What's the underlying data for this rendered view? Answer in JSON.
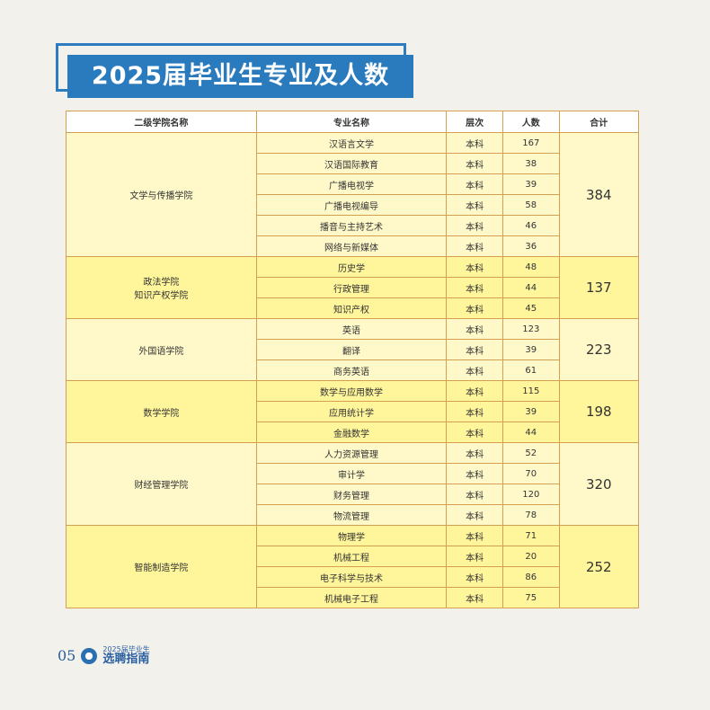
{
  "title": "2025届毕业生专业及人数",
  "table": {
    "headers": [
      "二级学院名称",
      "专业名称",
      "层次",
      "人数",
      "合计"
    ],
    "groups": [
      {
        "college": "文学与传播学院",
        "total": "384",
        "rows": [
          [
            "汉语言文学",
            "本科",
            "167"
          ],
          [
            "汉语国际教育",
            "本科",
            "38"
          ],
          [
            "广播电视学",
            "本科",
            "39"
          ],
          [
            "广播电视编导",
            "本科",
            "58"
          ],
          [
            "播音与主持艺术",
            "本科",
            "46"
          ],
          [
            "网络与新媒体",
            "本科",
            "36"
          ]
        ]
      },
      {
        "college": "政法学院\n知识产权学院",
        "total": "137",
        "rows": [
          [
            "历史学",
            "本科",
            "48"
          ],
          [
            "行政管理",
            "本科",
            "44"
          ],
          [
            "知识产权",
            "本科",
            "45"
          ]
        ]
      },
      {
        "college": "外国语学院",
        "total": "223",
        "rows": [
          [
            "英语",
            "本科",
            "123"
          ],
          [
            "翻译",
            "本科",
            "39"
          ],
          [
            "商务英语",
            "本科",
            "61"
          ]
        ]
      },
      {
        "college": "数学学院",
        "total": "198",
        "rows": [
          [
            "数学与应用数学",
            "本科",
            "115"
          ],
          [
            "应用统计学",
            "本科",
            "39"
          ],
          [
            "金融数学",
            "本科",
            "44"
          ]
        ]
      },
      {
        "college": "财经管理学院",
        "total": "320",
        "rows": [
          [
            "人力资源管理",
            "本科",
            "52"
          ],
          [
            "审计学",
            "本科",
            "70"
          ],
          [
            "财务管理",
            "本科",
            "120"
          ],
          [
            "物流管理",
            "本科",
            "78"
          ]
        ]
      },
      {
        "college": "智能制造学院",
        "total": "252",
        "rows": [
          [
            "物理学",
            "本科",
            "71"
          ],
          [
            "机械工程",
            "本科",
            "20"
          ],
          [
            "电子科学与技术",
            "本科",
            "86"
          ],
          [
            "机械电子工程",
            "本科",
            "75"
          ]
        ]
      }
    ]
  },
  "footer": {
    "page": "05",
    "line1": "2025届毕业生",
    "line2": "选聘指南"
  },
  "colors": {
    "title_bg": "#2a7bbd",
    "row_light": "#fff9c9",
    "row_dark": "#fff59b",
    "border": "#d4a050"
  }
}
